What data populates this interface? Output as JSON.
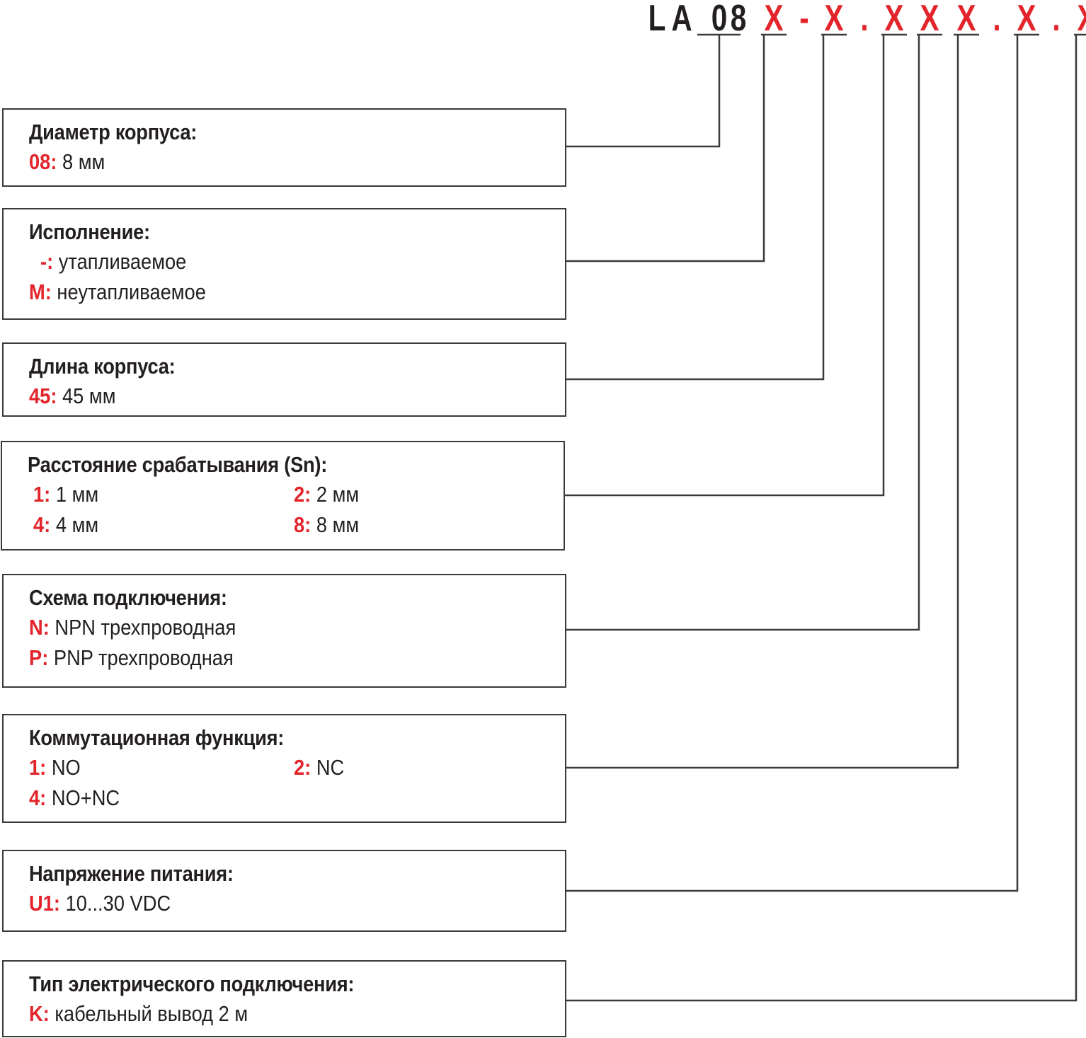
{
  "code": {
    "segments": [
      {
        "text": "L",
        "color": "#231f20"
      },
      {
        "text": "A",
        "color": "#231f20"
      },
      {
        "text": "0",
        "color": "#231f20"
      },
      {
        "text": "8",
        "color": "#231f20"
      },
      {
        "text": "X",
        "color": "#e3242b"
      },
      {
        "text": "-",
        "color": "#e3242b"
      },
      {
        "text": "X",
        "color": "#e3242b"
      },
      {
        "text": ".",
        "color": "#e3242b"
      },
      {
        "text": "X",
        "color": "#e3242b"
      },
      {
        "text": "X",
        "color": "#e3242b"
      },
      {
        "text": "X",
        "color": "#e3242b"
      },
      {
        "text": ".",
        "color": "#e3242b"
      },
      {
        "text": "X",
        "color": "#e3242b"
      },
      {
        "text": ".",
        "color": "#e3242b"
      },
      {
        "text": "X",
        "color": "#e3242b"
      }
    ]
  },
  "colors": {
    "key": "#e3242b",
    "text": "#231f20",
    "line": "#3a3a3a"
  },
  "groups": [
    {
      "title": "Диаметр корпуса:",
      "options": [
        {
          "key": "08",
          "sep": ":",
          "value": " 8 мм"
        }
      ]
    },
    {
      "title": "Исполнение:",
      "options": [
        {
          "key": "-",
          "sep": ":",
          "value": " утапливаемое"
        },
        {
          "key": "M",
          "sep": ":",
          "value": " неутапливаемое"
        }
      ]
    },
    {
      "title": "Длина корпуса:",
      "options": [
        {
          "key": "45",
          "sep": ":",
          "value": " 45 мм"
        }
      ]
    },
    {
      "title": "Расстояние срабатывания (Sn):",
      "options": [
        {
          "key": "1",
          "sep": ":",
          "value": " 1 мм"
        },
        {
          "key": "2",
          "sep": ":",
          "value": " 2 мм"
        },
        {
          "key": "4",
          "sep": ":",
          "value": " 4 мм"
        },
        {
          "key": "8",
          "sep": ":",
          "value": " 8 мм"
        }
      ]
    },
    {
      "title": "Схема подключения:",
      "options": [
        {
          "key": "N",
          "sep": ":",
          "value": " NPN трехпроводная"
        },
        {
          "key": "P",
          "sep": ":",
          "value": " PNP трехпроводная"
        }
      ]
    },
    {
      "title": "Коммутационная функция:",
      "options": [
        {
          "key": "1",
          "sep": ":",
          "value": " NO"
        },
        {
          "key": "2",
          "sep": ":",
          "value": " NC"
        },
        {
          "key": "4",
          "sep": ":",
          "value": " NO+NC"
        }
      ]
    },
    {
      "title": "Напряжение питания:",
      "options": [
        {
          "key": "U1",
          "sep": ":",
          "value": " 10...30 VDC"
        }
      ]
    },
    {
      "title": "Тип электрического подключения:",
      "options": [
        {
          "key": "K",
          "sep": ":",
          "value": " кабельный вывод 2 м"
        }
      ]
    }
  ]
}
